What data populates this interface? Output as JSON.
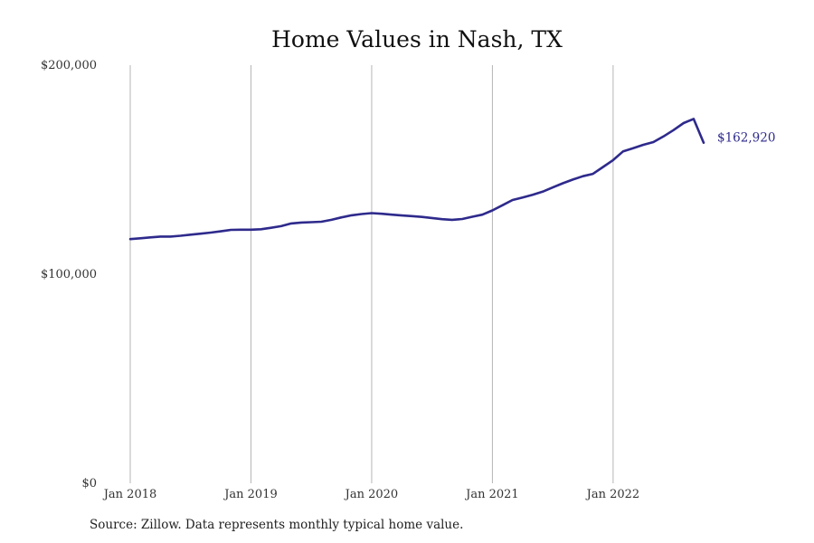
{
  "chart_data": {
    "type": "line",
    "title": "Home Values in Nash, TX",
    "xlabel": "",
    "ylabel": "",
    "ylim": [
      0,
      200000
    ],
    "y_ticks": [
      {
        "value": 0,
        "label": "$0"
      },
      {
        "value": 100000,
        "label": "$100,000"
      },
      {
        "value": 200000,
        "label": "$200,000"
      }
    ],
    "x_ticks": [
      {
        "value": "2018-01",
        "label": "Jan 2018"
      },
      {
        "value": "2019-01",
        "label": "Jan 2019"
      },
      {
        "value": "2020-01",
        "label": "Jan 2020"
      },
      {
        "value": "2021-01",
        "label": "Jan 2021"
      },
      {
        "value": "2022-01",
        "label": "Jan 2022"
      }
    ],
    "xlim": [
      "2018-01",
      "2022-10"
    ],
    "grid": "vertical",
    "line_color": "#2e2a8c",
    "end_label": "$162,920",
    "series": [
      {
        "x": [
          "2018-01",
          "2018-02",
          "2018-03",
          "2018-04",
          "2018-05",
          "2018-06",
          "2018-07",
          "2018-08",
          "2018-09",
          "2018-10",
          "2018-11",
          "2018-12",
          "2019-01",
          "2019-02",
          "2019-03",
          "2019-04",
          "2019-05",
          "2019-06",
          "2019-07",
          "2019-08",
          "2019-09",
          "2019-10",
          "2019-11",
          "2019-12",
          "2020-01",
          "2020-02",
          "2020-03",
          "2020-04",
          "2020-05",
          "2020-06",
          "2020-07",
          "2020-08",
          "2020-09",
          "2020-10",
          "2020-11",
          "2020-12",
          "2021-01",
          "2021-02",
          "2021-03",
          "2021-04",
          "2021-05",
          "2021-06",
          "2021-07",
          "2021-08",
          "2021-09",
          "2021-10",
          "2021-11",
          "2021-12",
          "2022-01",
          "2022-02",
          "2022-03",
          "2022-04",
          "2022-05",
          "2022-06",
          "2022-07",
          "2022-08",
          "2022-09",
          "2022-10"
        ],
        "values": [
          116800,
          117200,
          117600,
          118000,
          118000,
          118400,
          118900,
          119400,
          119900,
          120500,
          121200,
          121300,
          121300,
          121500,
          122200,
          123000,
          124300,
          124700,
          124900,
          125100,
          126000,
          127200,
          128200,
          128800,
          129200,
          128900,
          128500,
          128100,
          127800,
          127400,
          126900,
          126300,
          126000,
          126400,
          127500,
          128500,
          130500,
          133000,
          135500,
          136700,
          138000,
          139500,
          141500,
          143500,
          145300,
          146900,
          148000,
          151300,
          154600,
          158800,
          160300,
          161900,
          163200,
          165900,
          168900,
          172300,
          174300,
          162920
        ]
      }
    ]
  },
  "source": "Source: Zillow. Data represents monthly typical home value."
}
